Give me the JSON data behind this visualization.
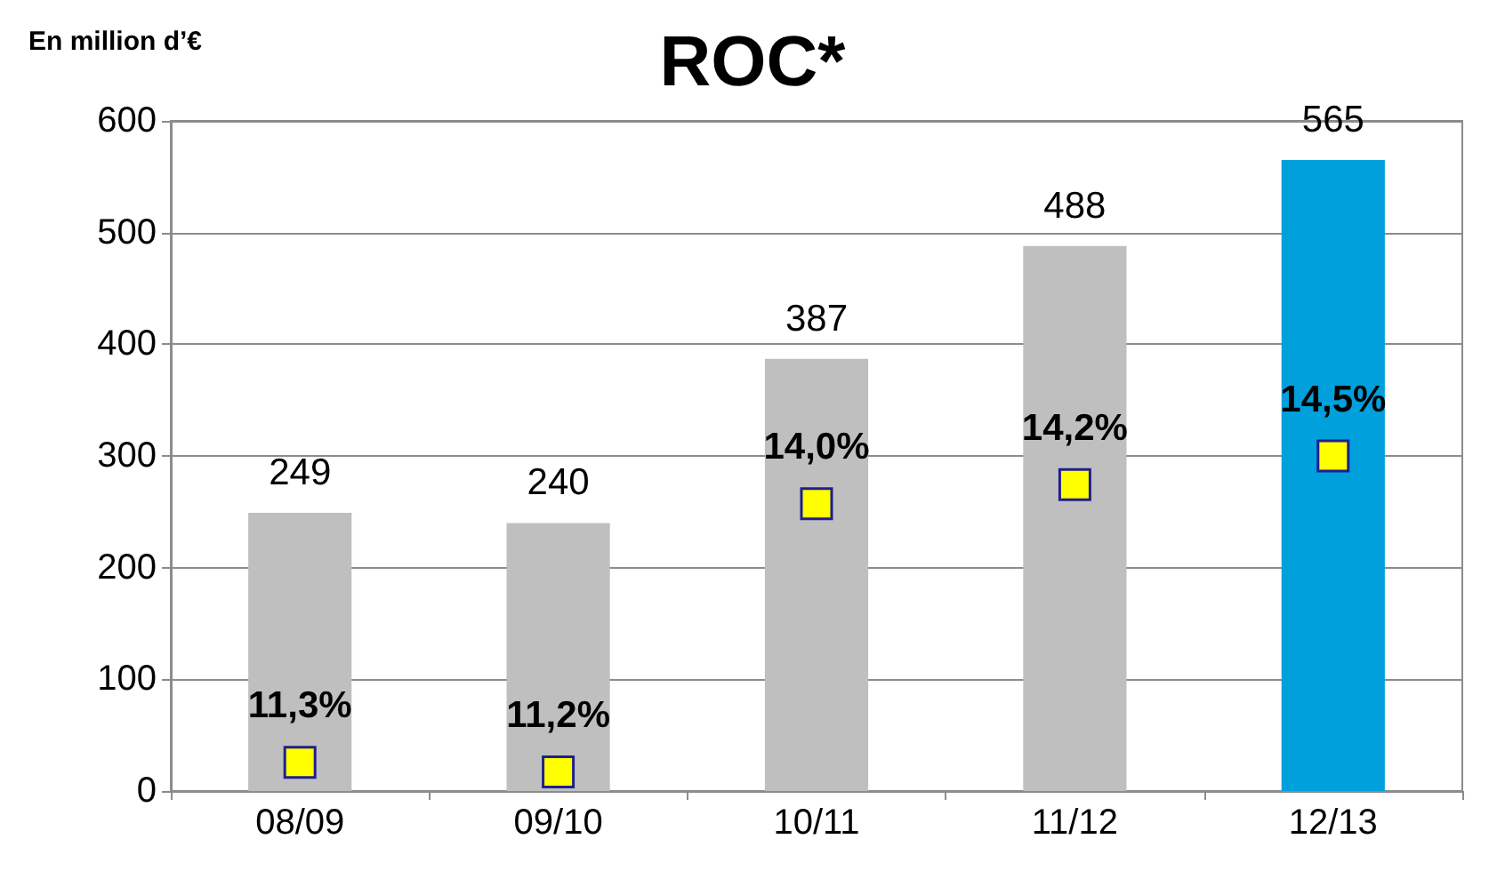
{
  "chart_data": {
    "type": "bar",
    "title": "ROC*",
    "ylabel": "En million d’€",
    "categories": [
      "08/09",
      "09/10",
      "10/11",
      "11/12",
      "12/13"
    ],
    "series": [
      {
        "colors": [
          "#bfbfbf",
          "#bfbfbf",
          "#bfbfbf",
          "#bfbfbf",
          "#00a0dc"
        ],
        "values": [
          249,
          240,
          387,
          488,
          565
        ],
        "value_labels": [
          "249",
          "240",
          "387",
          "488",
          "565"
        ]
      },
      {
        "type": "scatter",
        "axis": "y2",
        "color": "#ffff00",
        "marker": "square",
        "values": [
          11.3,
          11.2,
          14.0,
          14.2,
          14.5
        ],
        "value_labels": [
          "11,3%",
          "11,2%",
          "14,0%",
          "14,2%",
          "14,5%"
        ]
      }
    ],
    "ylim": [
      0,
      600
    ],
    "yticks": [
      0,
      100,
      200,
      300,
      400,
      500,
      600
    ],
    "y2lim": [
      11,
      18
    ],
    "grid": "y"
  }
}
